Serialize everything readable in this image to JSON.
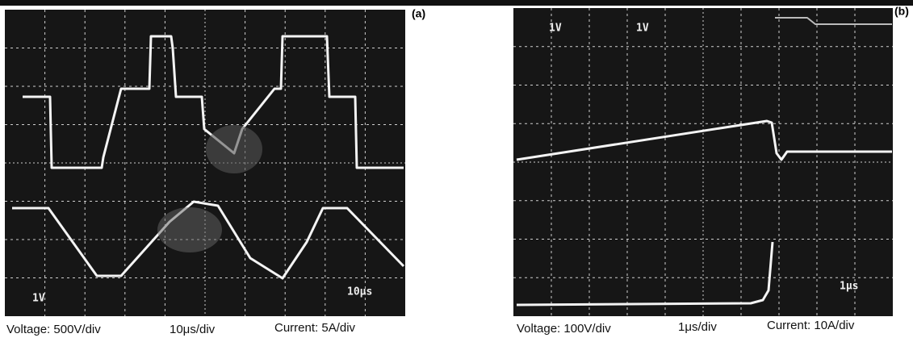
{
  "panels": [
    {
      "label": "(a)",
      "scope_labels": [
        "1V",
        "10μs"
      ],
      "caption": [
        "Voltage: 500V/div",
        "10μs/div",
        "Current: 5A/div"
      ]
    },
    {
      "label": "(b)",
      "scope_labels": [
        "1V",
        "1V",
        "1μs"
      ],
      "caption": [
        "Voltage: 100V/div",
        "1μs/div",
        "Current: 10A/div"
      ]
    }
  ]
}
